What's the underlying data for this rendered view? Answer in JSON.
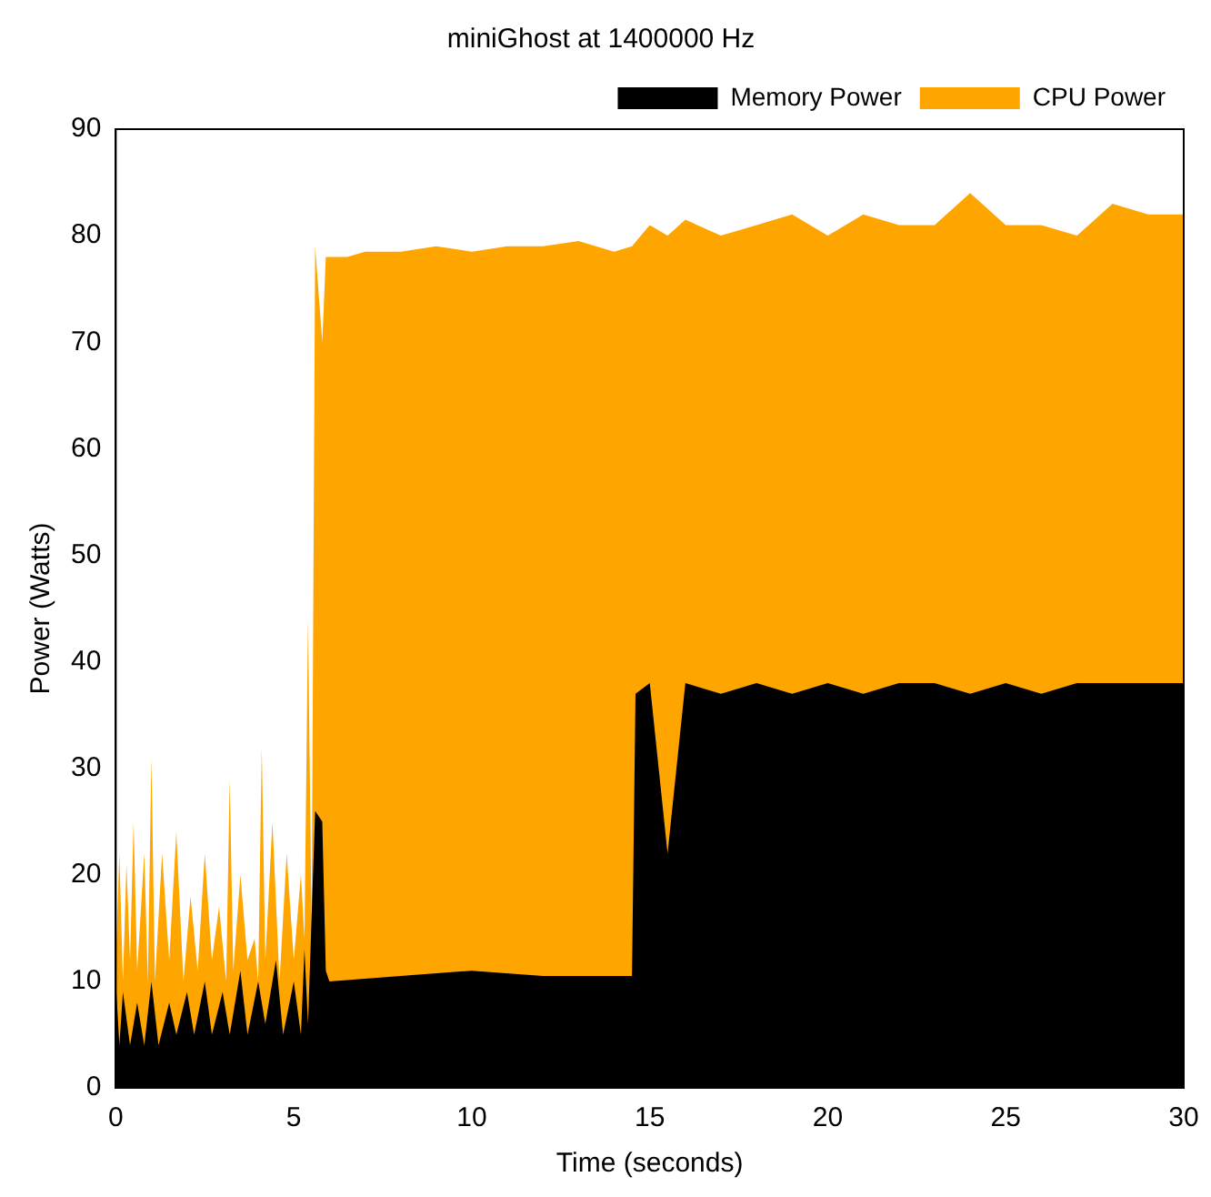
{
  "chart_data": {
    "type": "area",
    "title": "miniGhost at 1400000 Hz",
    "xlabel": "Time (seconds)",
    "ylabel": "Power (Watts)",
    "xlim": [
      0,
      30
    ],
    "ylim": [
      0,
      90
    ],
    "xticks": [
      0,
      5,
      10,
      15,
      20,
      25,
      30
    ],
    "yticks": [
      0,
      10,
      20,
      30,
      40,
      50,
      60,
      70,
      80,
      90
    ],
    "grid": false,
    "legend": "top right",
    "series": [
      {
        "name": "CPU Power",
        "color": "#ffa500",
        "x": [
          0,
          0.1,
          0.2,
          0.3,
          0.4,
          0.5,
          0.6,
          0.8,
          0.9,
          1.0,
          1.1,
          1.3,
          1.5,
          1.7,
          1.9,
          2.1,
          2.3,
          2.5,
          2.7,
          2.9,
          3.1,
          3.2,
          3.3,
          3.5,
          3.7,
          3.9,
          4.0,
          4.1,
          4.2,
          4.4,
          4.6,
          4.8,
          5.0,
          5.2,
          5.3,
          5.4,
          5.5,
          5.6,
          5.8,
          5.9,
          6.5,
          7,
          8,
          9,
          10,
          11,
          12,
          13,
          14,
          14.5,
          15,
          15.5,
          16,
          17,
          18,
          19,
          20,
          21,
          22,
          23,
          24,
          25,
          26,
          27,
          28,
          29,
          30
        ],
        "values": [
          12,
          22,
          10,
          21,
          12,
          25,
          11,
          22,
          10,
          31,
          10,
          22,
          12,
          24,
          10,
          18,
          11,
          22,
          12,
          17,
          10,
          29,
          11,
          20,
          12,
          14,
          10,
          32,
          12,
          25,
          10,
          22,
          12,
          20,
          14,
          44,
          15,
          79,
          70,
          78,
          78,
          78.5,
          78.5,
          79,
          78.5,
          79,
          79,
          79.5,
          78.5,
          79,
          81,
          80,
          81.5,
          80,
          81,
          82,
          80,
          82,
          81,
          81,
          84,
          81,
          81,
          80,
          83,
          82,
          82
        ]
      },
      {
        "name": "Memory Power",
        "color": "#000000",
        "x": [
          0,
          0.1,
          0.2,
          0.4,
          0.6,
          0.8,
          1.0,
          1.2,
          1.5,
          1.7,
          2.0,
          2.2,
          2.5,
          2.7,
          3.0,
          3.2,
          3.5,
          3.7,
          4.0,
          4.2,
          4.5,
          4.7,
          5.0,
          5.2,
          5.3,
          5.4,
          5.6,
          5.8,
          5.9,
          6,
          8,
          10,
          12,
          14,
          14.5,
          14.6,
          15,
          15.5,
          16,
          17,
          18,
          19,
          20,
          21,
          22,
          23,
          24,
          25,
          26,
          27,
          28,
          29,
          30
        ],
        "values": [
          10,
          4,
          9,
          4,
          8,
          4,
          10,
          4,
          8,
          5,
          9,
          5,
          10,
          5,
          9,
          5,
          11,
          5,
          10,
          6,
          12,
          5,
          10,
          5,
          13,
          6,
          26,
          25,
          11,
          10,
          10.5,
          11,
          10.5,
          10.5,
          10.5,
          37,
          38,
          22,
          38,
          37,
          38,
          37,
          38,
          37,
          38,
          38,
          37,
          38,
          37,
          38,
          38,
          38,
          38
        ]
      }
    ]
  }
}
